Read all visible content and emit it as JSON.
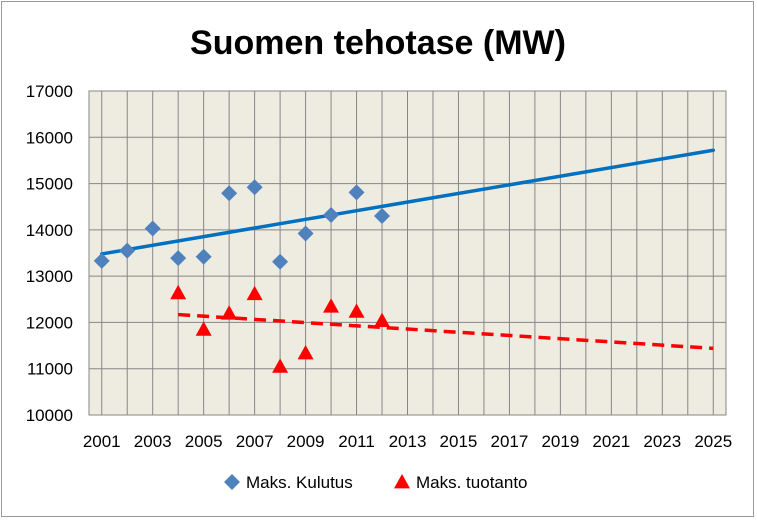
{
  "chart_data": {
    "type": "scatter",
    "title": "Suomen tehotase (MW)",
    "xlabel": "",
    "ylabel": "",
    "xlim": [
      2000.5,
      2025.5
    ],
    "ylim": [
      10000,
      17000
    ],
    "x_ticks": [
      2001,
      2003,
      2005,
      2007,
      2009,
      2011,
      2013,
      2015,
      2017,
      2019,
      2021,
      2023,
      2025
    ],
    "y_ticks": [
      10000,
      11000,
      12000,
      13000,
      14000,
      15000,
      16000,
      17000
    ],
    "grid": true,
    "legend_position": "bottom",
    "series": [
      {
        "name": "Maks. Kulutus",
        "marker": "diamond",
        "color": "#4f81bd",
        "x": [
          2001,
          2002,
          2003,
          2004,
          2005,
          2006,
          2007,
          2008,
          2009,
          2010,
          2011,
          2012
        ],
        "y": [
          13330,
          13550,
          14030,
          13390,
          13420,
          14790,
          14920,
          13310,
          13920,
          14320,
          14810,
          14300
        ]
      },
      {
        "name": "Maks. tuotanto",
        "marker": "triangle",
        "color": "#ff0000",
        "x": [
          2004,
          2005,
          2006,
          2007,
          2008,
          2009,
          2010,
          2011,
          2012
        ],
        "y": [
          12640,
          11850,
          12200,
          12620,
          11050,
          11340,
          12350,
          12240,
          12040
        ]
      }
    ],
    "trendlines": [
      {
        "series": "Maks. Kulutus",
        "style": "solid",
        "color": "#0070c0",
        "x": [
          2001,
          2025
        ],
        "y": [
          13480,
          15720
        ]
      },
      {
        "series": "Maks. tuotanto",
        "style": "dashed",
        "color": "#ff0000",
        "x": [
          2004,
          2025
        ],
        "y": [
          12170,
          11440
        ]
      }
    ]
  }
}
